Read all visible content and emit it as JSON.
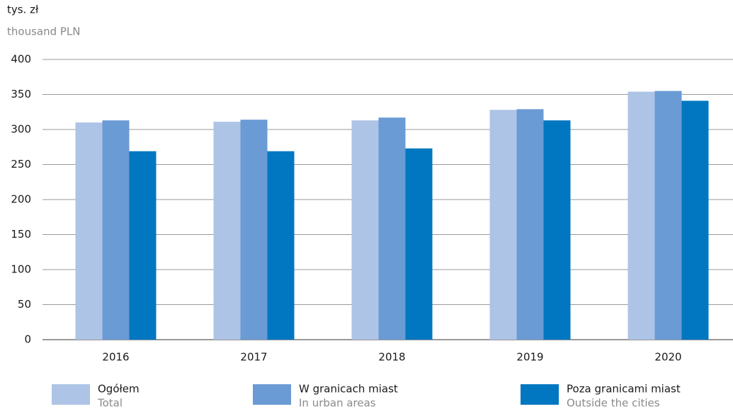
{
  "chart_data": {
    "type": "bar",
    "y_label": "tys. zł",
    "y_label_en": "thousand PLN",
    "categories": [
      "2016",
      "2017",
      "2018",
      "2019",
      "2020"
    ],
    "series": [
      {
        "name": "Ogółem",
        "name_en": "Total",
        "color": "#aec4e6",
        "values": [
          310,
          311,
          313,
          328,
          354
        ]
      },
      {
        "name": "W granicach miast",
        "name_en": "In urban areas",
        "color": "#6a9bd4",
        "values": [
          313,
          314,
          317,
          329,
          355
        ]
      },
      {
        "name": "Poza granicami miast",
        "name_en": "Outside the cities",
        "color": "#0077c0",
        "values": [
          269,
          269,
          273,
          313,
          341
        ]
      }
    ],
    "ylim": [
      0,
      400
    ],
    "yticks": [
      0,
      50,
      100,
      150,
      200,
      250,
      300,
      350,
      400
    ],
    "grid": true
  }
}
